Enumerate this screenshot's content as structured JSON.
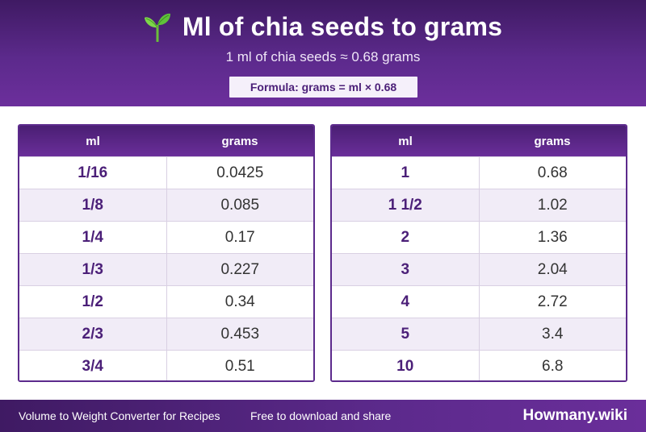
{
  "header": {
    "title": "Ml of chia seeds to grams",
    "subtitle": "1 ml of chia seeds ≈ 0.68 grams",
    "formula": "Formula: grams = ml × 0.68"
  },
  "tables": [
    {
      "columns": [
        "ml",
        "grams"
      ],
      "rows": [
        {
          "ml": "1/16",
          "grams": "0.0425"
        },
        {
          "ml": "1/8",
          "grams": "0.085"
        },
        {
          "ml": "1/4",
          "grams": "0.17"
        },
        {
          "ml": "1/3",
          "grams": "0.227"
        },
        {
          "ml": "1/2",
          "grams": "0.34"
        },
        {
          "ml": "2/3",
          "grams": "0.453"
        },
        {
          "ml": "3/4",
          "grams": "0.51"
        }
      ]
    },
    {
      "columns": [
        "ml",
        "grams"
      ],
      "rows": [
        {
          "ml": "1",
          "grams": "0.68"
        },
        {
          "ml": "1 1/2",
          "grams": "1.02"
        },
        {
          "ml": "2",
          "grams": "1.36"
        },
        {
          "ml": "3",
          "grams": "2.04"
        },
        {
          "ml": "4",
          "grams": "2.72"
        },
        {
          "ml": "5",
          "grams": "3.4"
        },
        {
          "ml": "10",
          "grams": "6.8"
        }
      ]
    }
  ],
  "footer": {
    "description": "Volume to Weight Converter for Recipes",
    "share": "Free to download and share",
    "brand": "Howmany.wiki"
  },
  "colors": {
    "primary": "#5c2a8c",
    "header_dark": "#3f1a63",
    "row_alt": "#f1ecf7",
    "text_ml": "#4b1f78"
  },
  "icons": {
    "title_icon": "seedling-icon"
  }
}
